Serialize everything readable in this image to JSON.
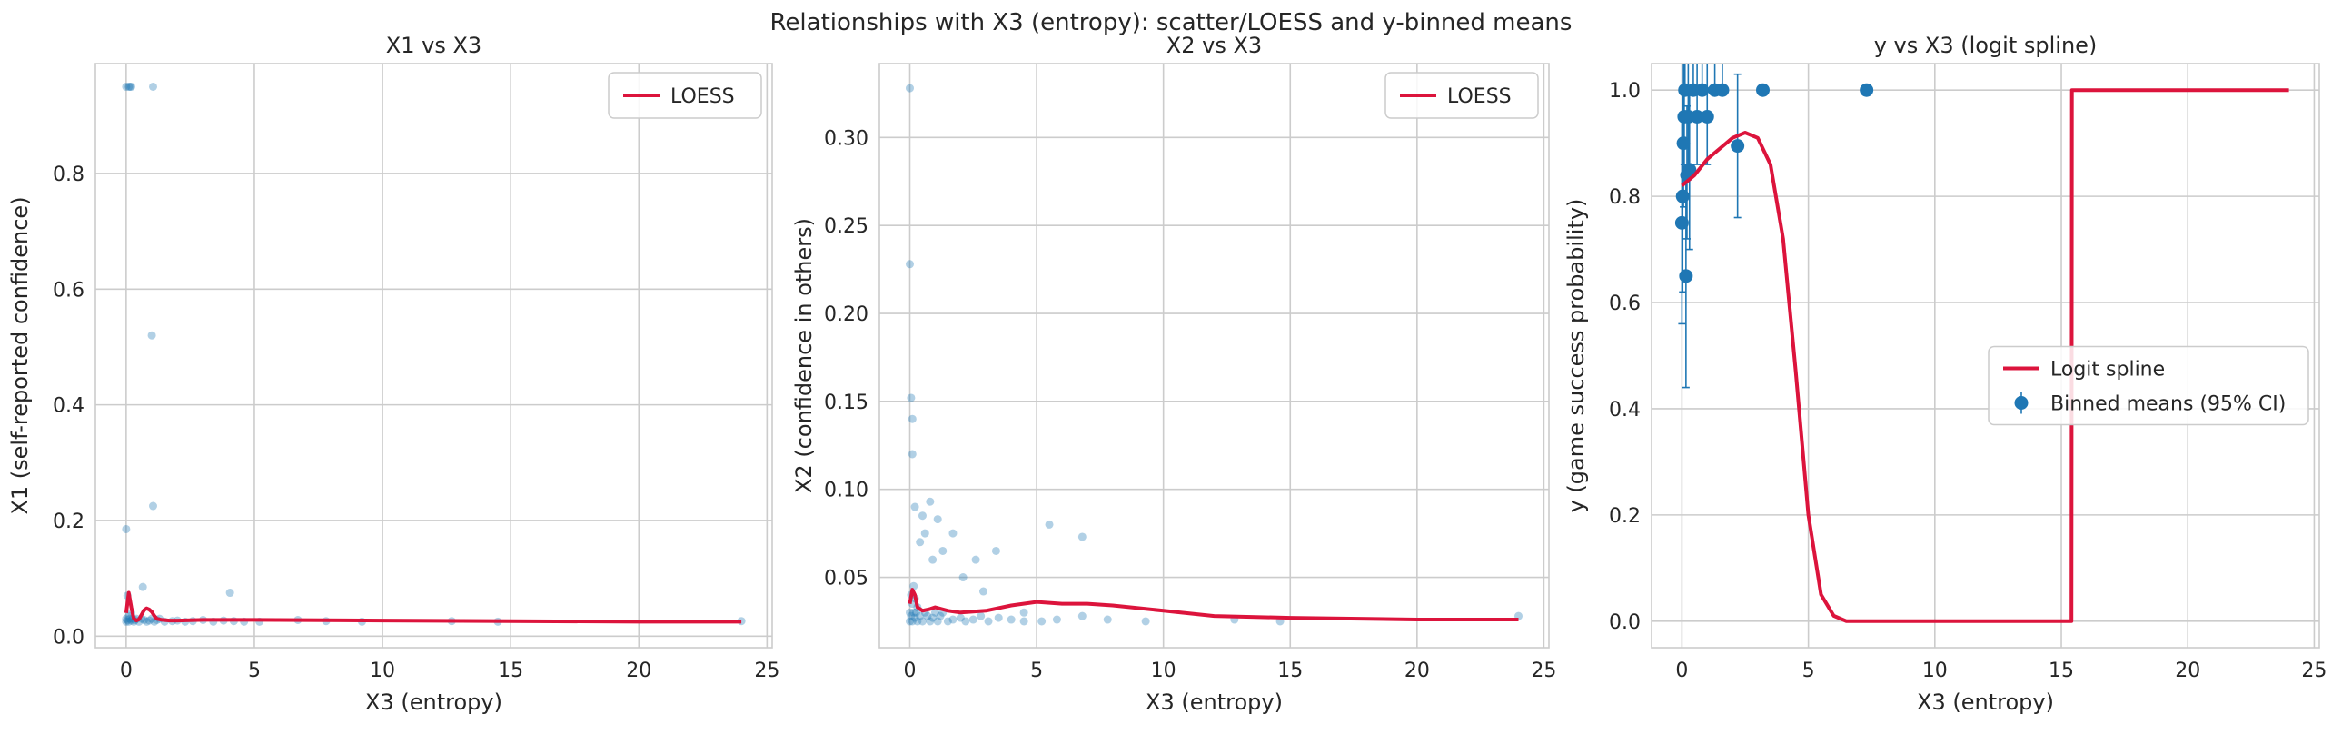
{
  "suptitle": "Relationships with X3 (entropy): scatter/LOESS and y-binned means",
  "colors": {
    "line": "#dc143c",
    "points": "#1f77b4",
    "grid": "#cccccc",
    "spine": "#cccccc"
  },
  "chart_data": [
    {
      "type": "scatter",
      "title": "X1 vs X3",
      "xlabel": "X3 (entropy)",
      "ylabel": "X1 (self-reported confidence)",
      "xlim": [
        -1.2,
        25.2
      ],
      "ylim": [
        -0.02,
        0.99
      ],
      "xticks": [
        0,
        5,
        10,
        15,
        20,
        25
      ],
      "yticks": [
        0.0,
        0.2,
        0.4,
        0.6,
        0.8
      ],
      "ytick_labels": [
        "0.0",
        "0.2",
        "0.4",
        "0.6",
        "0.8"
      ],
      "legend": {
        "position": "upper-right",
        "entries": [
          "LOESS"
        ]
      },
      "points": {
        "x": [
          0.0,
          0.0,
          0.05,
          0.1,
          0.1,
          0.15,
          0.2,
          0.2,
          0.25,
          0.3,
          0.35,
          0.4,
          0.5,
          0.6,
          0.7,
          0.8,
          0.9,
          1.0,
          1.1,
          1.2,
          1.3,
          1.5,
          1.8,
          2.0,
          2.3,
          2.6,
          3.0,
          3.4,
          3.8,
          4.2,
          4.6,
          5.2,
          6.7,
          7.8,
          9.2,
          12.7,
          14.5,
          24.0,
          0.0,
          0.1,
          0.15,
          0.2,
          1.05,
          0.0,
          0.05,
          0.65,
          1.0,
          1.05,
          4.05
        ],
        "y": [
          0.025,
          0.03,
          0.028,
          0.025,
          0.035,
          0.03,
          0.027,
          0.04,
          0.03,
          0.025,
          0.028,
          0.03,
          0.025,
          0.03,
          0.028,
          0.025,
          0.027,
          0.03,
          0.025,
          0.028,
          0.03,
          0.025,
          0.026,
          0.027,
          0.025,
          0.026,
          0.028,
          0.025,
          0.027,
          0.026,
          0.025,
          0.025,
          0.028,
          0.026,
          0.025,
          0.026,
          0.025,
          0.026,
          0.95,
          0.95,
          0.95,
          0.95,
          0.95,
          0.185,
          0.07,
          0.085,
          0.52,
          0.225,
          0.075
        ]
      },
      "line": {
        "name": "LOESS",
        "x": [
          0.0,
          0.1,
          0.2,
          0.3,
          0.4,
          0.5,
          0.6,
          0.7,
          0.8,
          0.9,
          1.0,
          1.1,
          1.2,
          1.4,
          1.7,
          2.0,
          3.0,
          5.0,
          10.0,
          15.0,
          20.0,
          24.0
        ],
        "y": [
          0.04,
          0.075,
          0.05,
          0.03,
          0.027,
          0.029,
          0.037,
          0.045,
          0.048,
          0.046,
          0.042,
          0.035,
          0.03,
          0.028,
          0.027,
          0.027,
          0.028,
          0.028,
          0.027,
          0.026,
          0.025,
          0.025
        ]
      }
    },
    {
      "type": "scatter",
      "title": "X2 vs X3",
      "xlabel": "X3 (entropy)",
      "ylabel": "X2 (confidence in others)",
      "xlim": [
        -1.2,
        25.2
      ],
      "ylim": [
        0.01,
        0.342
      ],
      "xticks": [
        0,
        5,
        10,
        15,
        20,
        25
      ],
      "yticks": [
        0.05,
        0.1,
        0.15,
        0.2,
        0.25,
        0.3
      ],
      "ytick_labels": [
        "0.05",
        "0.10",
        "0.15",
        "0.20",
        "0.25",
        "0.30"
      ],
      "legend": {
        "position": "upper-right",
        "entries": [
          "LOESS"
        ]
      },
      "points": {
        "x": [
          0.0,
          0.0,
          0.05,
          0.05,
          0.1,
          0.1,
          0.15,
          0.15,
          0.2,
          0.2,
          0.25,
          0.3,
          0.3,
          0.4,
          0.5,
          0.6,
          0.7,
          0.8,
          0.9,
          1.0,
          1.1,
          1.2,
          1.3,
          1.5,
          1.7,
          2.0,
          2.2,
          2.5,
          2.8,
          3.1,
          3.5,
          4.0,
          4.5,
          5.2,
          5.8,
          6.8,
          7.8,
          9.3,
          12.8,
          14.6,
          24.0,
          0.0,
          0.0,
          0.05,
          0.1,
          0.1,
          0.2,
          0.4,
          0.5,
          0.6,
          0.8,
          0.9,
          1.1,
          1.3,
          1.7,
          2.1,
          2.6,
          2.9,
          3.4,
          4.5,
          5.5,
          6.8
        ],
        "y": [
          0.025,
          0.03,
          0.028,
          0.04,
          0.025,
          0.035,
          0.03,
          0.045,
          0.027,
          0.038,
          0.03,
          0.025,
          0.033,
          0.028,
          0.025,
          0.03,
          0.028,
          0.025,
          0.027,
          0.03,
          0.025,
          0.028,
          0.03,
          0.025,
          0.026,
          0.027,
          0.025,
          0.026,
          0.028,
          0.025,
          0.027,
          0.026,
          0.025,
          0.025,
          0.026,
          0.028,
          0.026,
          0.025,
          0.026,
          0.025,
          0.028,
          0.328,
          0.228,
          0.152,
          0.14,
          0.12,
          0.09,
          0.07,
          0.085,
          0.075,
          0.093,
          0.06,
          0.083,
          0.065,
          0.075,
          0.05,
          0.06,
          0.042,
          0.065,
          0.03,
          0.08,
          0.073
        ]
      },
      "line": {
        "name": "LOESS",
        "x": [
          0.0,
          0.1,
          0.2,
          0.3,
          0.5,
          0.8,
          1.0,
          1.5,
          2.0,
          3.0,
          4.0,
          5.0,
          6.0,
          7.0,
          8.0,
          10.0,
          12.0,
          15.0,
          20.0,
          24.0
        ],
        "y": [
          0.035,
          0.043,
          0.04,
          0.033,
          0.031,
          0.032,
          0.033,
          0.031,
          0.03,
          0.031,
          0.034,
          0.036,
          0.035,
          0.035,
          0.034,
          0.031,
          0.028,
          0.027,
          0.026,
          0.026
        ]
      }
    },
    {
      "type": "line",
      "title": "y vs X3 (logit spline)",
      "xlabel": "X3 (entropy)",
      "ylabel": "y (game success probability)",
      "xlim": [
        -1.2,
        25.2
      ],
      "ylim": [
        -0.05,
        1.05
      ],
      "xticks": [
        0,
        5,
        10,
        15,
        20,
        25
      ],
      "yticks": [
        0.0,
        0.2,
        0.4,
        0.6,
        0.8,
        1.0
      ],
      "ytick_labels": [
        "0.0",
        "0.2",
        "0.4",
        "0.6",
        "0.8",
        "1.0"
      ],
      "legend": {
        "position": "center-right",
        "entries": [
          "Logit spline",
          "Binned means (95% CI)"
        ]
      },
      "binned_means": {
        "name": "Binned means (95% CI)",
        "x": [
          0.0,
          0.03,
          0.06,
          0.09,
          0.12,
          0.16,
          0.2,
          0.25,
          0.3,
          0.45,
          0.6,
          0.8,
          1.0,
          1.3,
          1.6,
          2.2,
          3.2,
          7.3
        ],
        "y": [
          0.75,
          0.8,
          0.9,
          0.95,
          1.0,
          0.65,
          0.84,
          0.95,
          0.85,
          1.0,
          0.95,
          1.0,
          0.95,
          1.0,
          1.0,
          0.895,
          1.0,
          1.0
        ],
        "ci_low": [
          0.56,
          0.62,
          0.78,
          0.86,
          1.0,
          0.44,
          0.72,
          0.86,
          0.7,
          1.0,
          0.86,
          1.0,
          0.86,
          1.0,
          1.0,
          0.76,
          1.0,
          1.0
        ],
        "ci_high": [
          0.95,
          1.0,
          1.05,
          1.05,
          1.05,
          0.86,
          0.97,
          1.05,
          1.0,
          1.05,
          1.05,
          1.05,
          1.05,
          1.05,
          1.05,
          1.03,
          1.0,
          1.0
        ]
      },
      "line": {
        "name": "Logit spline",
        "x": [
          0.0,
          0.5,
          1.0,
          1.5,
          2.0,
          2.5,
          3.0,
          3.5,
          4.0,
          4.5,
          5.0,
          5.5,
          6.0,
          6.5,
          8.0,
          10.0,
          12.0,
          15.4,
          15.42,
          18.0,
          21.0,
          24.0
        ],
        "y": [
          0.82,
          0.84,
          0.87,
          0.89,
          0.91,
          0.92,
          0.91,
          0.86,
          0.72,
          0.47,
          0.2,
          0.05,
          0.01,
          0.0,
          0.0,
          0.0,
          0.0,
          0.0,
          1.0,
          1.0,
          1.0,
          1.0
        ]
      }
    }
  ]
}
